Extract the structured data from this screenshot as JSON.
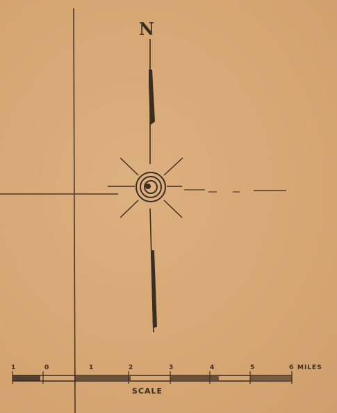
{
  "map": {
    "north_label": "N",
    "scale_title": "SCALE",
    "scale_ticks": [
      "1",
      "0",
      "1",
      "2",
      "3",
      "4",
      "5",
      "6"
    ],
    "scale_unit": "MILES",
    "colors": {
      "paper": "#d9a878",
      "ink": "#3a2d22"
    },
    "icons": [
      "north-arrow-icon",
      "compass-rose-icon"
    ]
  }
}
